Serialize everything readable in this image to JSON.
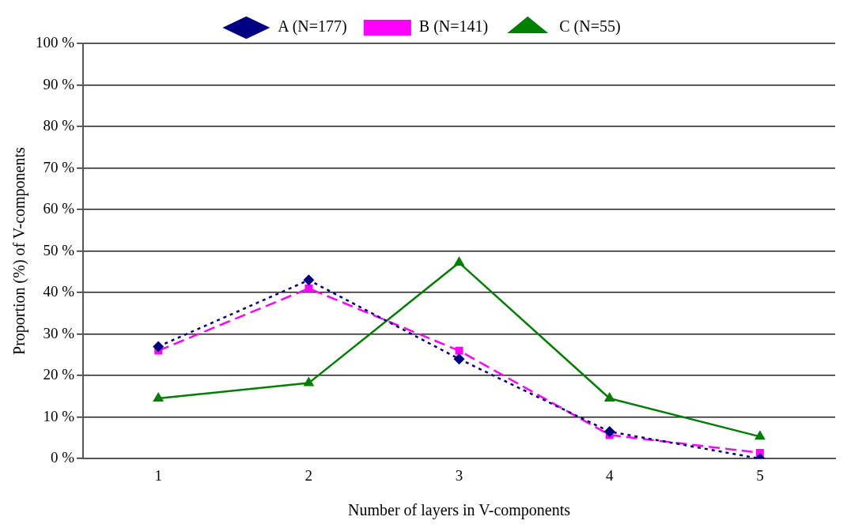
{
  "chart_data": {
    "type": "line",
    "xlabel": "Number of layers in V-components",
    "ylabel": "Proportion (%) of V-components",
    "categories": [
      "1",
      "2",
      "3",
      "4",
      "5"
    ],
    "series": [
      {
        "name": "A (N=177)",
        "color": "#000080",
        "values": [
          27,
          43,
          24,
          6.5,
          0
        ],
        "marker": "diamond",
        "line_style": "dotted"
      },
      {
        "name": "B (N=141)",
        "color": "#ff00ff",
        "values": [
          26,
          41,
          26,
          5.7,
          1.4
        ],
        "marker": "square",
        "line_style": "dashed"
      },
      {
        "name": "C (N=55)",
        "color": "#008000",
        "values": [
          14.5,
          18.2,
          47.2,
          14.5,
          5.3
        ],
        "marker": "triangle",
        "line_style": "solid"
      }
    ],
    "ylim": [
      0,
      100
    ],
    "yticks": [
      {
        "value": 0,
        "label": "0 %"
      },
      {
        "value": 10,
        "label": "10 %"
      },
      {
        "value": 20,
        "label": "20 %"
      },
      {
        "value": 30,
        "label": "30 %"
      },
      {
        "value": 40,
        "label": "40 %"
      },
      {
        "value": 50,
        "label": "50 %"
      },
      {
        "value": 60,
        "label": "60 %"
      },
      {
        "value": 70,
        "label": "70 %"
      },
      {
        "value": 80,
        "label": "80 %"
      },
      {
        "value": 90,
        "label": "90 %"
      },
      {
        "value": 100,
        "label": "100 %"
      }
    ],
    "grid": "y",
    "legend": "top"
  }
}
